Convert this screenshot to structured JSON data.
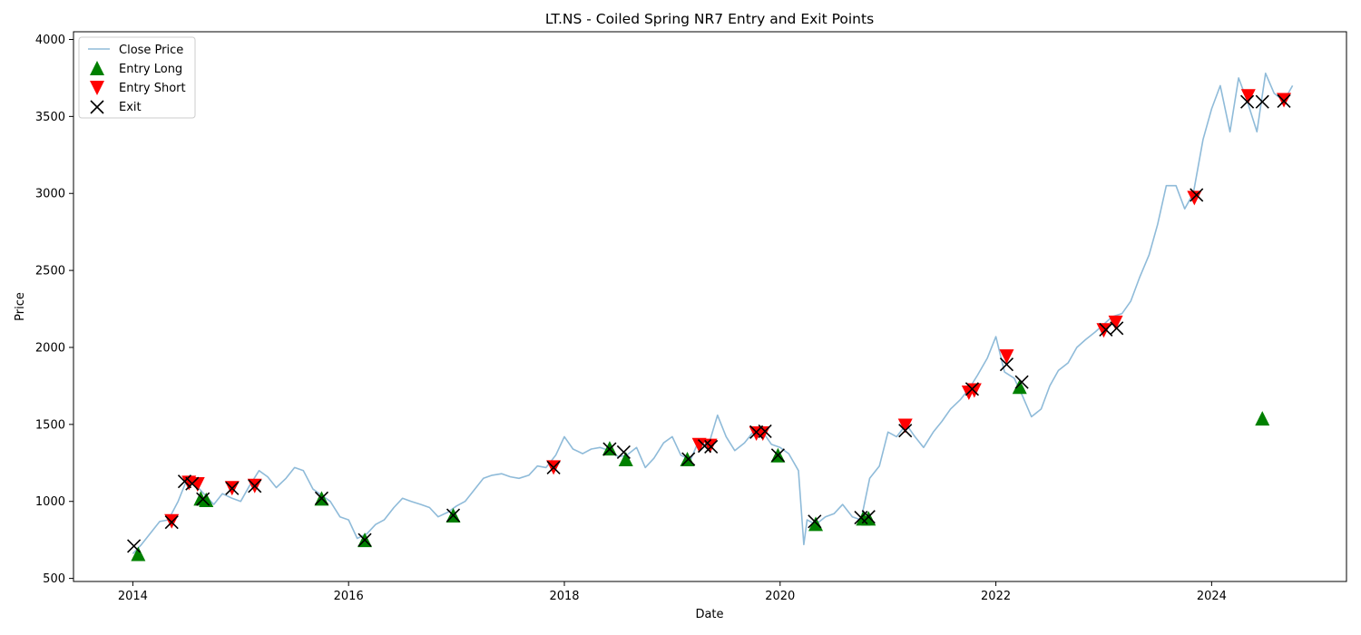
{
  "chart_data": {
    "type": "line",
    "title": "LT.NS - Coiled Spring NR7 Entry and Exit Points",
    "xlabel": "Date",
    "ylabel": "Price",
    "xlim": [
      2013.45,
      2025.25
    ],
    "ylim": [
      480,
      4050
    ],
    "x_ticks": [
      2014,
      2016,
      2018,
      2020,
      2022,
      2024
    ],
    "x_tick_labels": [
      "2014",
      "2016",
      "2018",
      "2020",
      "2022",
      "2024"
    ],
    "y_ticks": [
      500,
      1000,
      1500,
      2000,
      2500,
      3000,
      3500,
      4000
    ],
    "y_tick_labels": [
      "500",
      "1000",
      "1500",
      "2000",
      "2500",
      "3000",
      "3500",
      "4000"
    ],
    "grid": false,
    "legend_position": "top-left",
    "colors": {
      "close_price": "#1f77b4",
      "entry_long": "#008000",
      "entry_short": "#ff0000",
      "exit": "#000000"
    },
    "series": [
      {
        "name": "Close Price",
        "kind": "line",
        "alpha": 0.5,
        "x": [
          2014.0,
          2014.08,
          2014.17,
          2014.25,
          2014.33,
          2014.42,
          2014.5,
          2014.58,
          2014.67,
          2014.75,
          2014.83,
          2014.92,
          2015.0,
          2015.08,
          2015.17,
          2015.25,
          2015.33,
          2015.42,
          2015.5,
          2015.58,
          2015.67,
          2015.75,
          2015.83,
          2015.92,
          2016.0,
          2016.08,
          2016.17,
          2016.25,
          2016.33,
          2016.42,
          2016.5,
          2016.58,
          2016.67,
          2016.75,
          2016.83,
          2016.92,
          2017.0,
          2017.08,
          2017.17,
          2017.25,
          2017.33,
          2017.42,
          2017.5,
          2017.58,
          2017.67,
          2017.75,
          2017.83,
          2017.92,
          2018.0,
          2018.08,
          2018.17,
          2018.25,
          2018.33,
          2018.42,
          2018.5,
          2018.58,
          2018.67,
          2018.75,
          2018.83,
          2018.92,
          2019.0,
          2019.08,
          2019.17,
          2019.25,
          2019.33,
          2019.42,
          2019.5,
          2019.58,
          2019.67,
          2019.75,
          2019.83,
          2019.92,
          2020.0,
          2020.08,
          2020.17,
          2020.22,
          2020.25,
          2020.33,
          2020.42,
          2020.5,
          2020.58,
          2020.67,
          2020.75,
          2020.83,
          2020.92,
          2021.0,
          2021.08,
          2021.17,
          2021.25,
          2021.33,
          2021.42,
          2021.5,
          2021.58,
          2021.67,
          2021.75,
          2021.83,
          2021.92,
          2022.0,
          2022.08,
          2022.17,
          2022.25,
          2022.33,
          2022.42,
          2022.5,
          2022.58,
          2022.67,
          2022.75,
          2022.83,
          2022.92,
          2023.0,
          2023.08,
          2023.17,
          2023.25,
          2023.33,
          2023.42,
          2023.5,
          2023.58,
          2023.67,
          2023.75,
          2023.83,
          2023.92,
          2024.0,
          2024.08,
          2024.17,
          2024.25,
          2024.33,
          2024.42,
          2024.5,
          2024.58,
          2024.67,
          2024.75
        ],
        "y": [
          660,
          720,
          800,
          870,
          880,
          1000,
          1140,
          1110,
          1040,
          980,
          1050,
          1020,
          1000,
          1100,
          1200,
          1160,
          1090,
          1150,
          1220,
          1200,
          1080,
          1040,
          1000,
          900,
          880,
          760,
          790,
          850,
          880,
          960,
          1020,
          1000,
          980,
          960,
          900,
          930,
          970,
          1000,
          1080,
          1150,
          1170,
          1180,
          1160,
          1150,
          1170,
          1230,
          1220,
          1300,
          1420,
          1340,
          1310,
          1340,
          1350,
          1330,
          1290,
          1300,
          1350,
          1220,
          1280,
          1380,
          1420,
          1300,
          1270,
          1400,
          1350,
          1560,
          1420,
          1330,
          1380,
          1450,
          1460,
          1370,
          1350,
          1310,
          1200,
          720,
          880,
          850,
          900,
          920,
          980,
          900,
          880,
          1150,
          1230,
          1450,
          1420,
          1500,
          1420,
          1350,
          1450,
          1520,
          1600,
          1660,
          1730,
          1820,
          1930,
          2070,
          1840,
          1800,
          1680,
          1550,
          1600,
          1750,
          1850,
          1900,
          2000,
          2050,
          2100,
          2150,
          2200,
          2220,
          2300,
          2450,
          2600,
          2800,
          3050,
          3050,
          2900,
          3000,
          3350,
          3550,
          3700,
          3400,
          3750,
          3600,
          3400,
          3780,
          3650,
          3600,
          3700
        ]
      },
      {
        "name": "Entry Long",
        "kind": "marker",
        "marker": "triangle-up",
        "x": [
          2014.05,
          2014.63,
          2014.68,
          2015.75,
          2016.15,
          2016.97,
          2018.42,
          2018.57,
          2019.14,
          2019.98,
          2020.33,
          2020.77,
          2020.82,
          2022.22,
          2024.47
        ],
        "y": [
          660,
          1020,
          1010,
          1020,
          750,
          910,
          1345,
          1275,
          1275,
          1300,
          855,
          890,
          890,
          1745,
          1540
        ]
      },
      {
        "name": "Entry Short",
        "kind": "marker",
        "marker": "triangle-down",
        "x": [
          2014.36,
          2014.52,
          2014.6,
          2014.92,
          2015.13,
          2017.9,
          2019.25,
          2019.35,
          2019.78,
          2019.84,
          2021.16,
          2021.75,
          2021.8,
          2022.1,
          2023.0,
          2023.11,
          2023.84,
          2024.34,
          2024.67
        ],
        "y": [
          870,
          1120,
          1110,
          1085,
          1100,
          1220,
          1365,
          1360,
          1440,
          1440,
          1490,
          1705,
          1720,
          1940,
          2110,
          2160,
          2970,
          3630,
          3605
        ]
      },
      {
        "name": "Exit",
        "kind": "marker",
        "marker": "x",
        "x": [
          2014.01,
          2014.36,
          2014.48,
          2014.55,
          2014.65,
          2014.92,
          2015.13,
          2015.75,
          2016.15,
          2016.97,
          2017.9,
          2018.42,
          2018.55,
          2019.15,
          2019.3,
          2019.36,
          2019.78,
          2019.86,
          2019.98,
          2020.32,
          2020.75,
          2020.82,
          2021.16,
          2021.78,
          2022.1,
          2022.24,
          2023.02,
          2023.12,
          2023.86,
          2024.33,
          2024.47,
          2024.67
        ],
        "y": [
          710,
          865,
          1130,
          1115,
          1015,
          1085,
          1100,
          1020,
          750,
          910,
          1220,
          1340,
          1320,
          1275,
          1360,
          1355,
          1450,
          1455,
          1300,
          870,
          895,
          900,
          1460,
          1730,
          1890,
          1775,
          2115,
          2125,
          2990,
          3595,
          3595,
          3600
        ]
      }
    ]
  }
}
